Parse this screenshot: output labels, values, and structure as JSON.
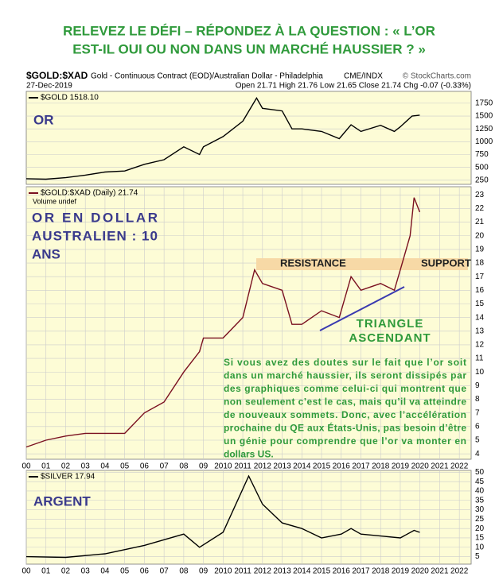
{
  "title": [
    "RELEVEZ LE DÉFI – RÉPONDEZ À LA QUESTION : « L’OR",
    "EST-IL OUI OU NON DANS UN MARCHÉ HAUSSIER ? »"
  ],
  "header": {
    "symbol": "$GOLD:$XAD",
    "description": "Gold - Continuous Contract (EOD)/Australian Dollar - Philadelphia",
    "exchange": "CME/INDX",
    "date": "27-Dec-2019",
    "quote": "Open 21.71  High 21.76  Low 21.65  Close 21.74  Chg -0.07 (-0.33%)",
    "copyright": "© StockCharts.com"
  },
  "chart_data": [
    {
      "type": "line",
      "legend": "$GOLD 1518.10",
      "label": [
        "OR"
      ],
      "color": "#000000",
      "x": [
        2000,
        2001,
        2002,
        2003,
        2004,
        2005,
        2006,
        2007,
        2008,
        2008.8,
        2009,
        2010,
        2011,
        2011.7,
        2012,
        2013,
        2013.5,
        2014,
        2015,
        2015.9,
        2016.5,
        2017,
        2018,
        2018.7,
        2019,
        2019.6,
        2019.99
      ],
      "values": [
        280,
        270,
        300,
        350,
        410,
        430,
        560,
        650,
        900,
        750,
        900,
        1100,
        1400,
        1850,
        1650,
        1600,
        1250,
        1250,
        1200,
        1060,
        1330,
        1200,
        1320,
        1200,
        1290,
        1500,
        1518
      ],
      "xlim": [
        2000,
        2022.6
      ],
      "ylim": [
        170,
        1980
      ],
      "yticks": [
        250,
        500,
        750,
        1000,
        1250,
        1500,
        1750
      ]
    },
    {
      "type": "line",
      "legend": "$GOLD:$XAD (Daily) 21.74",
      "sublegend": "Volume undef",
      "label": [
        "OR EN DOLLAR",
        "AUSTRALIEN : 10",
        "ANS"
      ],
      "color": "#7a1020",
      "annotations": [
        "RESISTANCE",
        "SUPPORT",
        "TRIANGLE",
        "ASCENDANT"
      ],
      "note": [
        "Si vous avez des doutes sur le fait que l’or soit",
        "dans un marché haussier, ils seront dissipés par",
        "des graphiques comme celui-ci qui montrent que",
        "non seulement c’est le cas, mais qu’il va atteindre",
        "de nouveaux sommets. Donc, avec l’accélération",
        "prochaine du QE aux États-Unis, pas besoin d’être",
        "un génie pour comprendre que l’or va monter en",
        "dollars US."
      ],
      "x": [
        2000,
        2001,
        2002,
        2003,
        2004,
        2005,
        2006,
        2007,
        2008,
        2008.8,
        2009,
        2010,
        2011,
        2011.6,
        2012,
        2013,
        2013.5,
        2014,
        2015,
        2015.9,
        2016.5,
        2017,
        2018,
        2018.7,
        2019,
        2019.5,
        2019.7,
        2019.99
      ],
      "values": [
        4.5,
        5.0,
        5.3,
        5.5,
        5.5,
        5.5,
        7.0,
        7.8,
        10,
        11.5,
        12.5,
        12.5,
        14.0,
        17.5,
        16.5,
        16.0,
        13.5,
        13.5,
        14.5,
        14.0,
        17.0,
        16.0,
        16.5,
        16.0,
        17.5,
        20,
        22.8,
        21.74
      ],
      "xlim": [
        2000,
        2022.6
      ],
      "ylim": [
        3.6,
        23.6
      ],
      "yticks": [
        4,
        5,
        6,
        7,
        8,
        9,
        10,
        11,
        12,
        13,
        14,
        15,
        16,
        17,
        18,
        19,
        20,
        21,
        22,
        23
      ],
      "xticks": [
        {
          "value": 2000,
          "label": "00"
        },
        {
          "value": 2001,
          "label": "01"
        },
        {
          "value": 2002,
          "label": "02"
        },
        {
          "value": 2003,
          "label": "03"
        },
        {
          "value": 2004,
          "label": "04"
        },
        {
          "value": 2005,
          "label": "05"
        },
        {
          "value": 2006,
          "label": "06"
        },
        {
          "value": 2007,
          "label": "07"
        },
        {
          "value": 2008,
          "label": "08"
        },
        {
          "value": 2009,
          "label": "09"
        },
        2010,
        2011,
        2012,
        2013,
        2014,
        2015,
        2016,
        2017,
        2018,
        2019,
        2020,
        2021,
        2022
      ]
    },
    {
      "type": "line",
      "legend": "$SILVER 17.94",
      "label": [
        "ARGENT"
      ],
      "color": "#000000",
      "x": [
        2000,
        2002,
        2004,
        2006,
        2008,
        2008.8,
        2010,
        2011.3,
        2012,
        2013,
        2014,
        2015,
        2016,
        2016.5,
        2017,
        2018,
        2019,
        2019.7,
        2019.99
      ],
      "values": [
        5,
        4.6,
        6.5,
        11,
        17,
        10,
        18,
        48,
        33,
        23,
        20,
        15,
        17,
        20,
        17,
        16,
        15,
        19,
        17.94
      ],
      "xlim": [
        2000,
        2022.6
      ],
      "ylim": [
        1,
        51
      ],
      "yticks": [
        5,
        10,
        15,
        20,
        25,
        30,
        35,
        40,
        45,
        50
      ],
      "xticks": [
        {
          "value": 2000,
          "label": "00"
        },
        {
          "value": 2001,
          "label": "01"
        },
        {
          "value": 2002,
          "label": "02"
        },
        {
          "value": 2003,
          "label": "03"
        },
        {
          "value": 2004,
          "label": "04"
        },
        {
          "value": 2005,
          "label": "05"
        },
        {
          "value": 2006,
          "label": "06"
        },
        {
          "value": 2007,
          "label": "07"
        },
        {
          "value": 2008,
          "label": "08"
        },
        {
          "value": 2009,
          "label": "09"
        },
        2010,
        2011,
        2012,
        2013,
        2014,
        2015,
        2016,
        2017,
        2018,
        2019,
        2020,
        2021,
        2022
      ]
    }
  ]
}
